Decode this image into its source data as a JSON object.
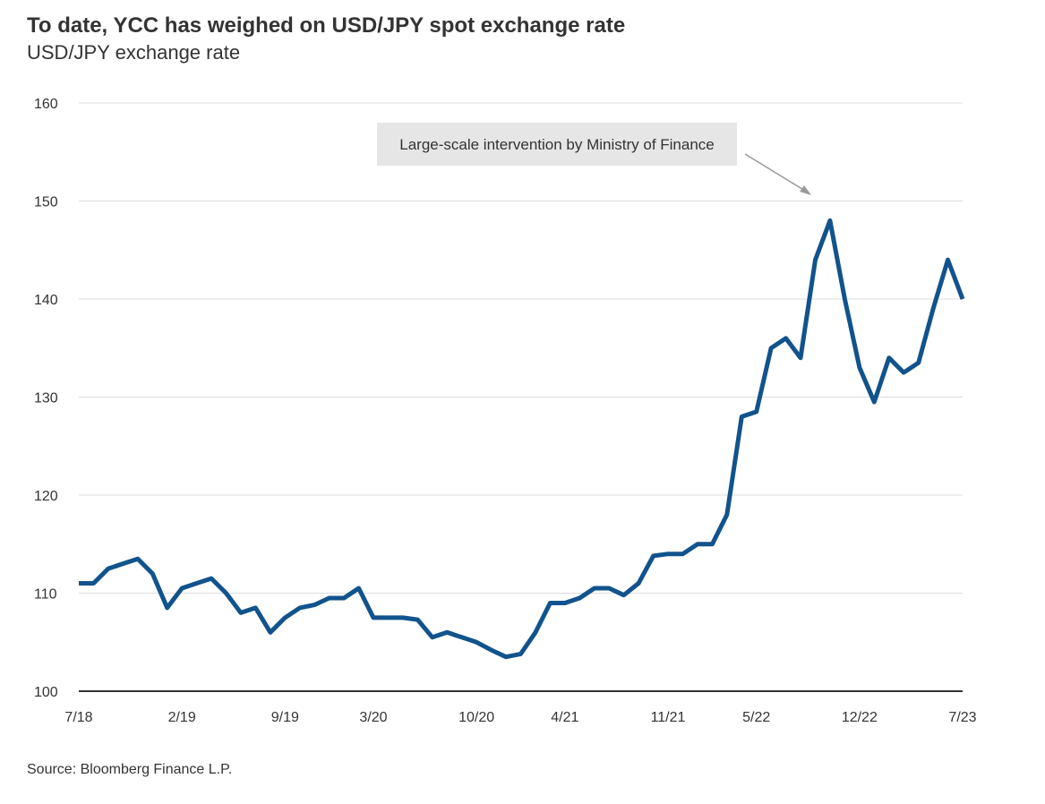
{
  "chart_data": {
    "type": "line",
    "title": "To date, YCC has weighed on USD/JPY spot exchange rate",
    "subtitle": "USD/JPY exchange rate",
    "source": "Source: Bloomberg Finance L.P.",
    "annotation": "Large-scale intervention by Ministry of Finance",
    "categories": [
      "7/18",
      null,
      null,
      null,
      null,
      null,
      null,
      "2/19",
      null,
      null,
      null,
      null,
      null,
      null,
      "9/19",
      null,
      null,
      null,
      null,
      null,
      "3/20",
      null,
      null,
      null,
      null,
      null,
      null,
      "10/20",
      null,
      null,
      null,
      null,
      null,
      "4/21",
      null,
      null,
      null,
      null,
      null,
      null,
      "11/21",
      null,
      null,
      null,
      null,
      null,
      "5/22",
      null,
      null,
      null,
      null,
      null,
      null,
      "12/22",
      null,
      null,
      null,
      null,
      null,
      null,
      "7/23"
    ],
    "series": [
      {
        "name": "USD/JPY",
        "color": "#11538c",
        "values": [
          111,
          111,
          112.5,
          113,
          113.5,
          112,
          108.5,
          110.5,
          111,
          111.5,
          110,
          108,
          108.5,
          106,
          107.5,
          108.5,
          108.8,
          109.5,
          109.5,
          110.5,
          107.5,
          107.5,
          107.5,
          107.3,
          105.5,
          106,
          105.5,
          105,
          104.2,
          103.5,
          103.8,
          106,
          109,
          109,
          109.5,
          110.5,
          110.5,
          109.8,
          111,
          113.8,
          114,
          114,
          115,
          115,
          118,
          128,
          128.5,
          135,
          136,
          134,
          144,
          148,
          140,
          133,
          129.5,
          134,
          132.5,
          133.5,
          139,
          144,
          140
        ]
      }
    ],
    "ylim": [
      100,
      160
    ],
    "yticks": [
      100,
      110,
      120,
      130,
      140,
      150,
      160
    ],
    "grid": true
  }
}
